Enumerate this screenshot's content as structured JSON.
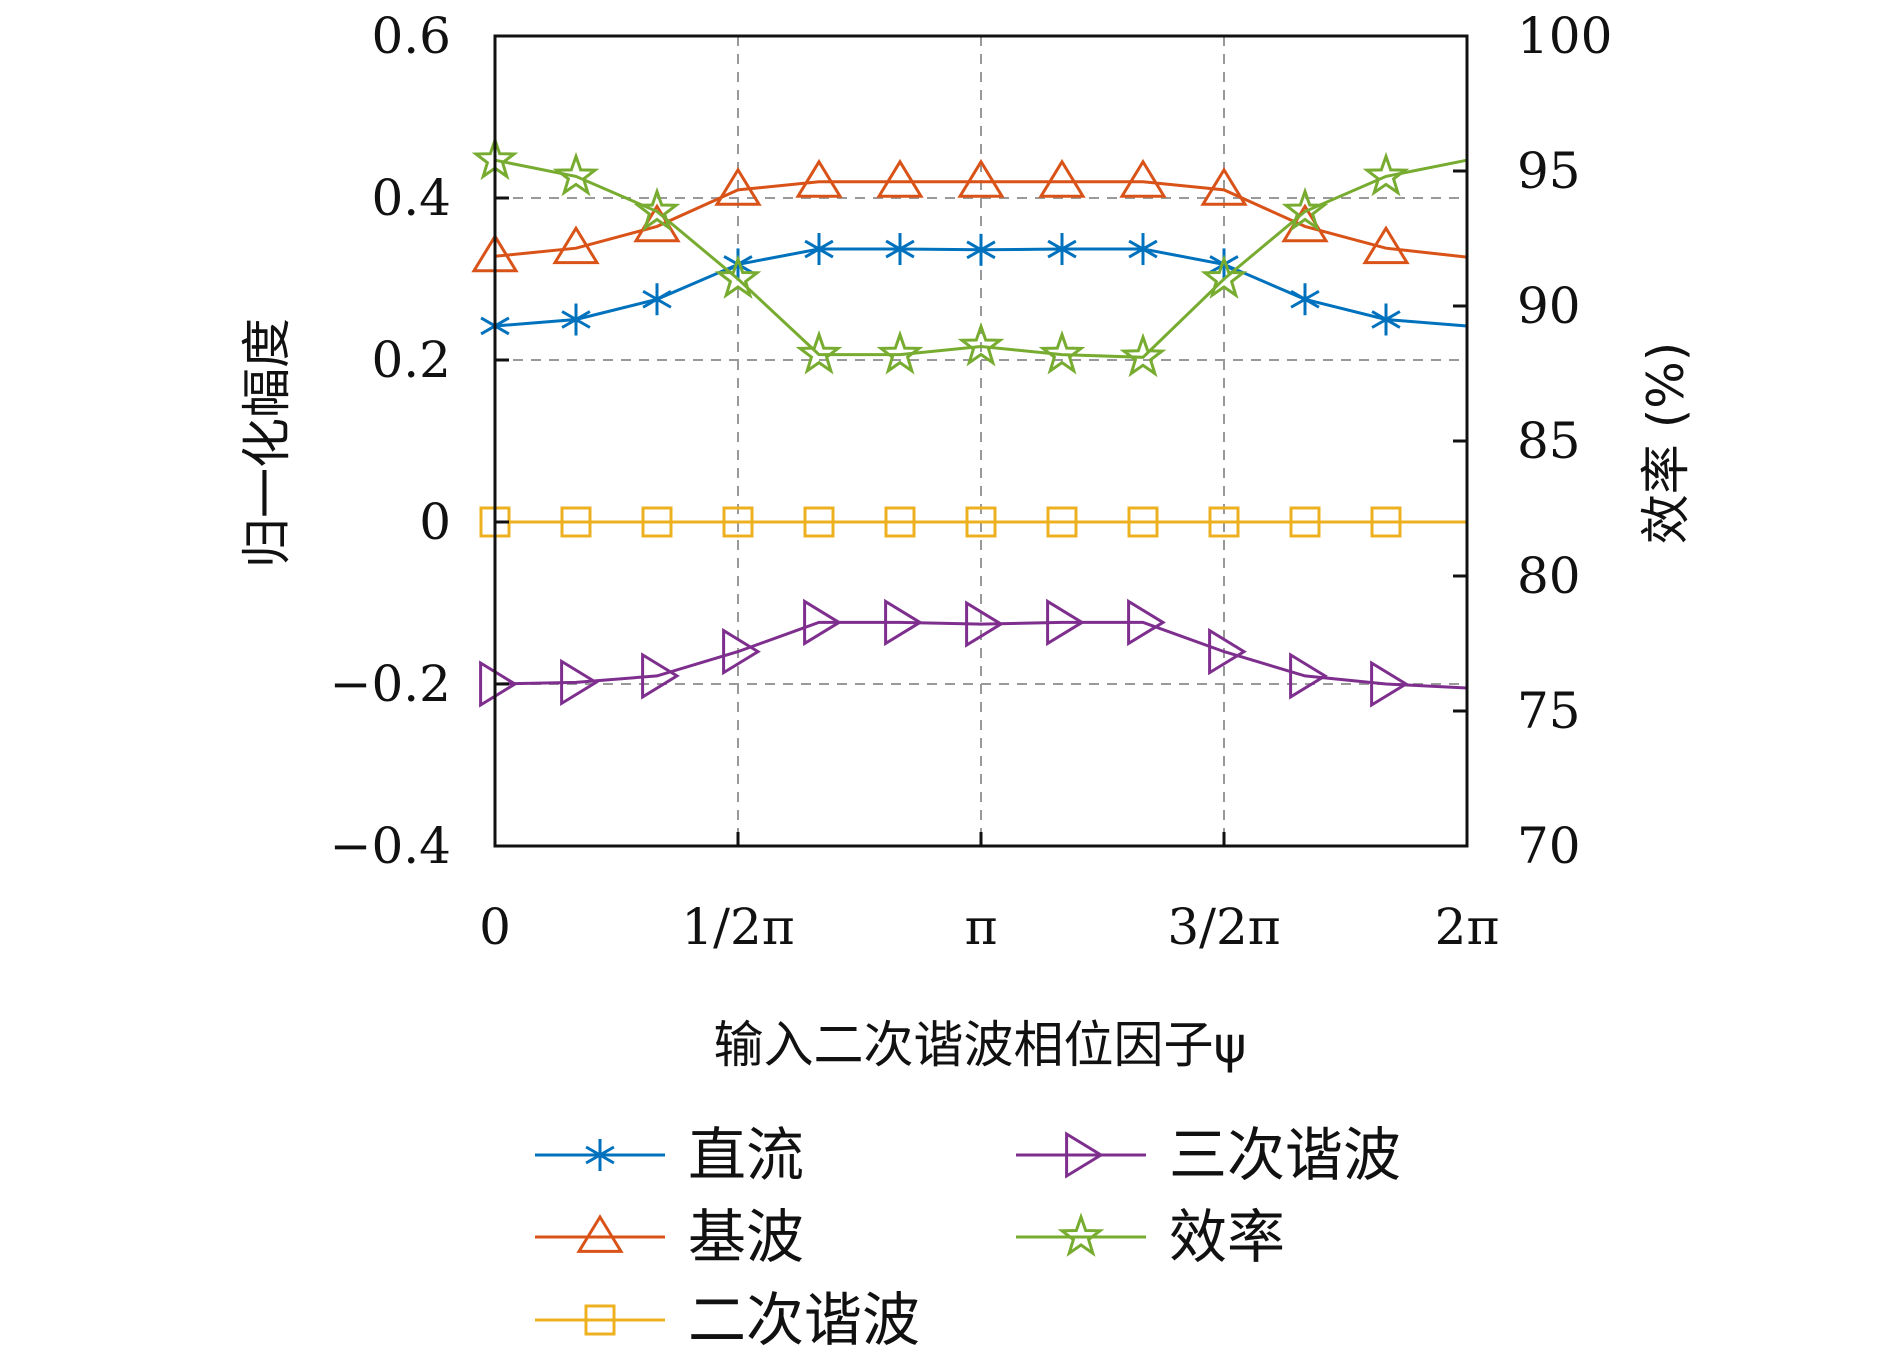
{
  "chart_data": {
    "type": "line",
    "xlabel": "输入二次谐波相位因子ψ",
    "ylabel_left": "归一化幅度",
    "ylabel_right": "效率 (%)",
    "xlim": [
      0,
      6.2832
    ],
    "ylim_left": [
      -0.4,
      0.6
    ],
    "ylim_right": [
      70,
      100
    ],
    "grid": true,
    "legend_position": "bottom",
    "x_ticks": [
      {
        "value": 0,
        "label": "0"
      },
      {
        "value": 1.5708,
        "label": "1/2π"
      },
      {
        "value": 3.1416,
        "label": "π"
      },
      {
        "value": 4.7124,
        "label": "3/2π"
      },
      {
        "value": 6.2832,
        "label": "2π"
      }
    ],
    "y_ticks_left": [
      {
        "value": 0.6,
        "label": "0.6"
      },
      {
        "value": 0.4,
        "label": "0.4"
      },
      {
        "value": 0.2,
        "label": "0.2"
      },
      {
        "value": 0,
        "label": "0"
      },
      {
        "value": -0.2,
        "label": "−0.2"
      },
      {
        "value": -0.4,
        "label": "−0.4"
      }
    ],
    "y_ticks_right": [
      {
        "value": 100,
        "label": "100"
      },
      {
        "value": 95,
        "label": "95"
      },
      {
        "value": 90,
        "label": "90"
      },
      {
        "value": 85,
        "label": "85"
      },
      {
        "value": 80,
        "label": "80"
      },
      {
        "value": 75,
        "label": "75"
      },
      {
        "value": 70,
        "label": "70"
      }
    ],
    "x": [
      0,
      0.5236,
      1.0472,
      1.5708,
      2.0944,
      2.618,
      3.1416,
      3.6652,
      4.1888,
      4.7124,
      5.236,
      5.7596,
      6.2832
    ],
    "series": [
      {
        "name": "直流",
        "axis": "left",
        "marker": "asterisk",
        "color": "#0072BD",
        "values": [
          0.242,
          0.25,
          0.275,
          0.318,
          0.337,
          0.337,
          0.336,
          0.337,
          0.337,
          0.318,
          0.275,
          0.25,
          0.242
        ]
      },
      {
        "name": "基波",
        "axis": "left",
        "marker": "triangle",
        "color": "#D95319",
        "values": [
          0.328,
          0.338,
          0.365,
          0.41,
          0.42,
          0.42,
          0.42,
          0.42,
          0.42,
          0.41,
          0.365,
          0.338,
          0.327
        ]
      },
      {
        "name": "二次谐波",
        "axis": "left",
        "marker": "square",
        "color": "#EDB120",
        "values": [
          0,
          0,
          0,
          0,
          0,
          0,
          0,
          0,
          0,
          0,
          0,
          0,
          0
        ]
      },
      {
        "name": "三次谐波",
        "axis": "left",
        "marker": "triangle-right",
        "color": "#7E2F8E",
        "values": [
          -0.2,
          -0.198,
          -0.19,
          -0.16,
          -0.124,
          -0.124,
          -0.126,
          -0.124,
          -0.124,
          -0.16,
          -0.19,
          -0.2,
          -0.205
        ]
      },
      {
        "name": "效率",
        "axis": "right",
        "marker": "star",
        "color": "#77AC30",
        "values": [
          95.4,
          94.8,
          93.5,
          91.0,
          88.2,
          88.2,
          88.5,
          88.2,
          88.1,
          91.0,
          93.5,
          94.8,
          95.4
        ]
      }
    ]
  }
}
